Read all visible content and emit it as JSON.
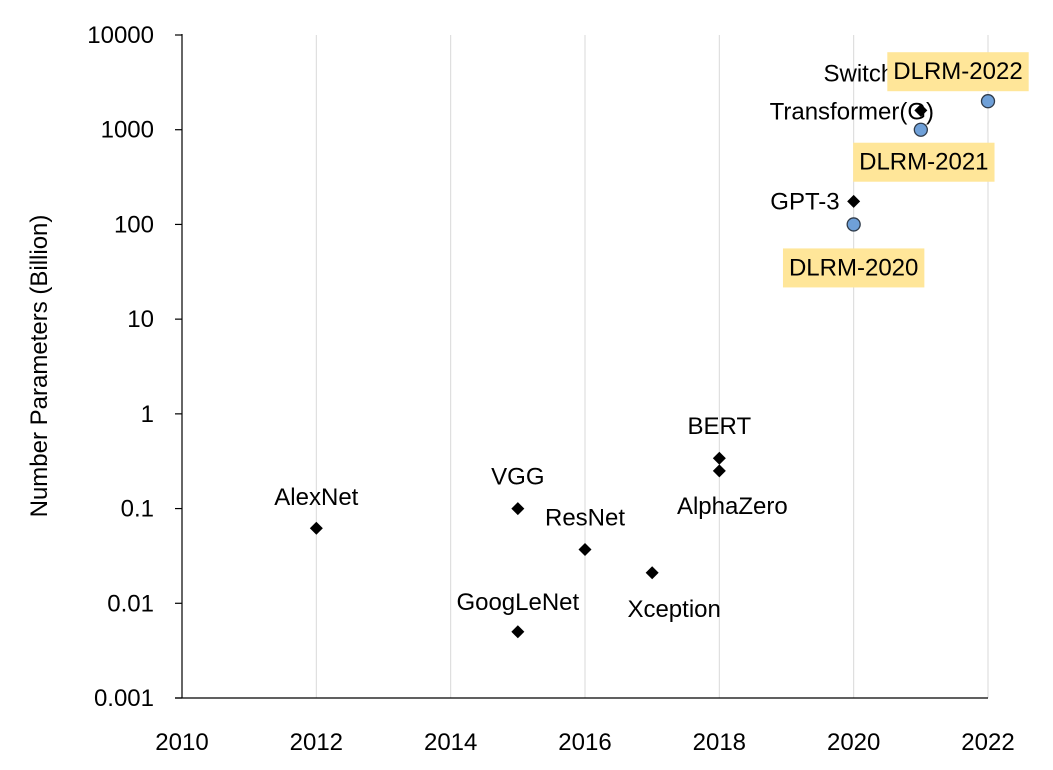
{
  "chart_data": {
    "type": "scatter",
    "ylabel": "Number Parameters (Billion)",
    "xlabel": "",
    "x_ticks": [
      "2010",
      "2012",
      "2014",
      "2016",
      "2018",
      "2020",
      "2022"
    ],
    "y_ticks": [
      "10000",
      "1000",
      "100",
      "10",
      "1",
      "0.1",
      "0.01",
      "0.001"
    ],
    "xlim": [
      2010,
      2022
    ],
    "ylim": [
      0.001,
      10000
    ],
    "yscale": "log",
    "grid": "vertical",
    "series": [
      {
        "marker": "diamond",
        "color": "#000000",
        "points": [
          {
            "label": "AlexNet",
            "x": 2012,
            "y": 0.062
          },
          {
            "label": "VGG",
            "x": 2015,
            "y": 0.1
          },
          {
            "label": "GoogLeNet",
            "x": 2015,
            "y": 0.005
          },
          {
            "label": "ResNet",
            "x": 2016,
            "y": 0.037
          },
          {
            "label": "Xception",
            "x": 2017,
            "y": 0.021
          },
          {
            "label": "BERT",
            "x": 2018,
            "y": 0.34
          },
          {
            "label": "AlphaZero",
            "x": 2018,
            "y": 0.25
          },
          {
            "label": "GPT-3",
            "x": 2020,
            "y": 175
          },
          {
            "label": "Switch Transformer(G)",
            "label_lines": [
              "Switch",
              "Transformer(G)"
            ],
            "x": 2021,
            "y": 1600
          }
        ]
      },
      {
        "marker": "circle",
        "color": "#6fa0d8",
        "highlight": "#ffe699",
        "points": [
          {
            "label": "DLRM-2020",
            "x": 2020,
            "y": 100
          },
          {
            "label": "DLRM-2021",
            "x": 2021,
            "y": 1000
          },
          {
            "label": "DLRM-2022",
            "x": 2022,
            "y": 2000
          }
        ]
      }
    ]
  }
}
